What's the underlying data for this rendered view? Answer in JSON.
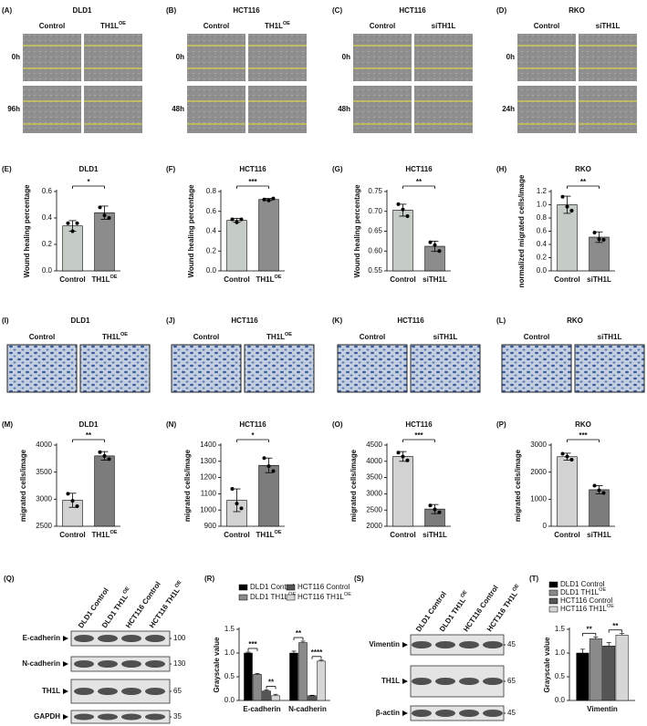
{
  "wound_panels": [
    {
      "label": "(A)",
      "title": "DLD1",
      "columns": [
        "Control",
        {
          "text": "TH1L",
          "sup": "OE"
        }
      ],
      "rows": [
        "0h",
        "96h"
      ]
    },
    {
      "label": "(B)",
      "title": "HCT116",
      "columns": [
        "Control",
        {
          "text": "TH1L",
          "sup": "OE"
        }
      ],
      "rows": [
        "0h",
        "48h"
      ]
    },
    {
      "label": "(C)",
      "title": "HCT116",
      "columns": [
        "Control",
        "siTH1L"
      ],
      "rows": [
        "0h",
        "48h"
      ]
    },
    {
      "label": "(D)",
      "title": "RKO",
      "columns": [
        "Control",
        "siTH1L"
      ],
      "rows": [
        "0h",
        "24h"
      ]
    }
  ],
  "transwell_panels": [
    {
      "label": "(I)",
      "title": "DLD1",
      "columns": [
        "Control",
        {
          "text": "TH1L",
          "sup": "OE"
        }
      ]
    },
    {
      "label": "(J)",
      "title": "HCT116",
      "columns": [
        "Control",
        {
          "text": "TH1L",
          "sup": "OE"
        }
      ]
    },
    {
      "label": "(K)",
      "title": "HCT116",
      "columns": [
        "Control",
        "siTH1L"
      ]
    },
    {
      "label": "(L)",
      "title": "RKO",
      "columns": [
        "Control",
        "siTH1L"
      ]
    }
  ],
  "blots": [
    {
      "label": "(Q)",
      "lanes": [
        "DLD1 Control",
        {
          "text": "DLD1 TH1L",
          "sup": "OE"
        },
        "HCT116 Control",
        {
          "text": "HCT116 TH1L",
          "sup": "OE"
        }
      ],
      "bands": [
        {
          "name": "E-cadherin",
          "marker": 100
        },
        {
          "name": "N-cadherin",
          "marker": 130
        },
        {
          "name": "TH1L",
          "marker": 65
        },
        {
          "name": "GAPDH",
          "marker": 35
        }
      ]
    },
    {
      "label": "(S)",
      "lanes": [
        "DLD1 Control",
        {
          "text": "DLD1 TH1L",
          "sup": "OE"
        },
        "HCT116 Control",
        {
          "text": "HCT116 TH1L",
          "sup": "OE"
        }
      ],
      "bands": [
        {
          "name": "Vimentin",
          "marker": 45
        },
        {
          "name": "TH1L",
          "marker": 65
        },
        {
          "name": "β-actin",
          "marker": 45
        }
      ]
    }
  ],
  "chart_data": [
    {
      "type": "bar",
      "label": "(E)",
      "title": "DLD1",
      "ylabel": "Wound healing percentage",
      "categories": [
        "Control",
        {
          "text": "TH1L",
          "sup": "OE"
        }
      ],
      "values": [
        0.34,
        0.44
      ],
      "errors": [
        0.04,
        0.05
      ],
      "points": [
        [
          0.36,
          0.3,
          0.36
        ],
        [
          0.48,
          0.42,
          0.4
        ]
      ],
      "colors": [
        "#c5cbc5",
        "#8c8c8c"
      ],
      "ylim": [
        0,
        0.6
      ],
      "yticks": [
        {
          "value": 0,
          "label": "0.0"
        },
        0.2,
        0.4,
        0.6
      ],
      "significance": "*"
    },
    {
      "type": "bar",
      "label": "(F)",
      "title": "HCT116",
      "ylabel": "Wound healing percentage",
      "categories": [
        "Control",
        {
          "text": "TH1L",
          "sup": "OE"
        }
      ],
      "values": [
        0.51,
        0.72
      ],
      "errors": [
        0.02,
        0.01
      ],
      "points": [
        [
          0.52,
          0.49,
          0.52
        ],
        [
          0.72,
          0.71,
          0.73
        ]
      ],
      "colors": [
        "#c5cbc5",
        "#8c8c8c"
      ],
      "ylim": [
        0,
        0.8
      ],
      "yticks": [
        {
          "value": 0,
          "label": "0.0"
        },
        0.2,
        0.4,
        0.6,
        0.8
      ],
      "significance": "***"
    },
    {
      "type": "bar",
      "label": "(G)",
      "title": "HCT116",
      "ylabel": "Wound healing percentage",
      "categories": [
        "Control",
        "siTH1L"
      ],
      "values": [
        0.703,
        0.612
      ],
      "errors": [
        0.015,
        0.013
      ],
      "points": [
        [
          0.718,
          0.705,
          0.688
        ],
        [
          0.622,
          0.615,
          0.6
        ]
      ],
      "colors": [
        "#c5cbc5",
        "#8c8c8c"
      ],
      "ylim": [
        0.55,
        0.75
      ],
      "yticks": [
        0.55,
        {
          "value": 0.6,
          "label": "0.60"
        },
        0.65,
        {
          "value": 0.7,
          "label": "0.70"
        },
        0.75
      ],
      "significance": "**"
    },
    {
      "type": "bar",
      "label": "(H)",
      "title": "RKO",
      "ylabel": "normalized migrated cells/image",
      "categories": [
        "Control",
        "siTH1L"
      ],
      "values": [
        1.0,
        0.51
      ],
      "errors": [
        0.13,
        0.08
      ],
      "points": [
        [
          1.12,
          0.97,
          0.91
        ],
        [
          0.58,
          0.48,
          0.47
        ]
      ],
      "colors": [
        "#c5cbc5",
        "#8c8c8c"
      ],
      "ylim": [
        0,
        1.2
      ],
      "yticks": [
        {
          "value": 0,
          "label": "0.0"
        },
        0.2,
        0.4,
        0.6,
        0.8,
        {
          "value": 1,
          "label": "1.0"
        },
        1.2
      ],
      "significance": "**"
    },
    {
      "type": "bar",
      "label": "(M)",
      "title": "DLD1",
      "ylabel": "migrated cells/image",
      "categories": [
        "Control",
        {
          "text": "TH1L",
          "sup": "OE"
        }
      ],
      "values": [
        2980,
        3800
      ],
      "errors": [
        130,
        80
      ],
      "points": [
        [
          3100,
          2970,
          2870
        ],
        [
          3870,
          3800,
          3740
        ]
      ],
      "colors": [
        "#d2d2d2",
        "#7c7c7c"
      ],
      "ylim": [
        2500,
        4000
      ],
      "yticks": [
        2500,
        3000,
        3500,
        4000
      ],
      "significance": "**"
    },
    {
      "type": "bar",
      "label": "(N)",
      "title": "HCT116",
      "ylabel": "migrated cells/image",
      "categories": [
        "Control",
        {
          "text": "TH1L",
          "sup": "OE"
        }
      ],
      "values": [
        1060,
        1275
      ],
      "errors": [
        70,
        45
      ],
      "points": [
        [
          1130,
          1040,
          1010
        ],
        [
          1320,
          1270,
          1240
        ]
      ],
      "colors": [
        "#d2d2d2",
        "#7c7c7c"
      ],
      "ylim": [
        900,
        1400
      ],
      "yticks": [
        900,
        1000,
        1100,
        1200,
        1300,
        1400
      ],
      "significance": "*"
    },
    {
      "type": "bar",
      "label": "(O)",
      "title": "HCT116",
      "ylabel": "migrated cells/image",
      "categories": [
        "Control",
        "siTH1L"
      ],
      "values": [
        4150,
        2530
      ],
      "errors": [
        150,
        140
      ],
      "points": [
        [
          4270,
          4150,
          4030
        ],
        [
          2640,
          2520,
          2430
        ]
      ],
      "colors": [
        "#d2d2d2",
        "#7c7c7c"
      ],
      "ylim": [
        2000,
        4500
      ],
      "yticks": [
        2000,
        2500,
        3000,
        3500,
        4000,
        4500
      ],
      "significance": "***"
    },
    {
      "type": "bar",
      "label": "(P)",
      "title": "RKO",
      "ylabel": "migrated cells/image",
      "categories": [
        "Control",
        "siTH1L"
      ],
      "values": [
        2570,
        1350
      ],
      "errors": [
        130,
        150
      ],
      "points": [
        [
          2680,
          2580,
          2460
        ],
        [
          1500,
          1330,
          1230
        ]
      ],
      "colors": [
        "#d2d2d2",
        "#7c7c7c"
      ],
      "ylim": [
        0,
        3000
      ],
      "yticks": [
        0,
        1000,
        2000,
        3000
      ],
      "significance": "***"
    },
    {
      "type": "grouped-bar",
      "label": "(R)",
      "ylabel": "Grayscale value",
      "categories": [
        "E-cadherin",
        "N-cadherin"
      ],
      "series": [
        {
          "name": "DLD1 Control",
          "color": "#000000",
          "values": [
            1.0,
            1.0
          ],
          "errors": [
            0.02,
            0.04
          ]
        },
        {
          "name": {
            "text": "DLD1 TH1L",
            "sup": "OE"
          },
          "color": "#8a8a8a",
          "values": [
            0.55,
            1.22
          ],
          "errors": [
            0.02,
            0.03
          ]
        },
        {
          "name": "HCT116 Control",
          "color": "#555555",
          "values": [
            0.2,
            0.1
          ],
          "errors": [
            0.02,
            0.01
          ]
        },
        {
          "name": {
            "text": "HCT116 TH1L",
            "sup": "OE"
          },
          "color": "#d6d6d6",
          "values": [
            0.1,
            0.83
          ],
          "errors": [
            0.03,
            0.02
          ]
        }
      ],
      "ylim": [
        0,
        1.5
      ],
      "yticks": [
        {
          "value": 0,
          "label": "0.0"
        },
        0.5,
        {
          "value": 1,
          "label": "1.0"
        },
        1.5
      ],
      "significance": [
        [
          "***",
          "**"
        ],
        [
          "**",
          "****"
        ]
      ]
    },
    {
      "type": "grouped-bar",
      "label": "(T)",
      "ylabel": "Grayscale value",
      "categories": [
        "Vimentin"
      ],
      "series": [
        {
          "name": "DLD1 Control",
          "color": "#000000",
          "values": [
            1.0
          ],
          "errors": [
            0.08
          ]
        },
        {
          "name": {
            "text": "DLD1 TH1L",
            "sup": "OE"
          },
          "color": "#8a8a8a",
          "values": [
            1.3
          ],
          "errors": [
            0.04
          ]
        },
        {
          "name": "HCT116 Control",
          "color": "#555555",
          "values": [
            1.15
          ],
          "errors": [
            0.07
          ]
        },
        {
          "name": {
            "text": "HCT116 TH1L",
            "sup": "OE"
          },
          "color": "#d6d6d6",
          "values": [
            1.38
          ],
          "errors": [
            0.03
          ]
        }
      ],
      "ylim": [
        0,
        1.5
      ],
      "yticks": [
        {
          "value": 0,
          "label": "0.0"
        },
        0.5,
        {
          "value": 1,
          "label": "1.0"
        },
        1.5
      ],
      "significance": [
        [
          "**",
          "**"
        ]
      ]
    }
  ]
}
